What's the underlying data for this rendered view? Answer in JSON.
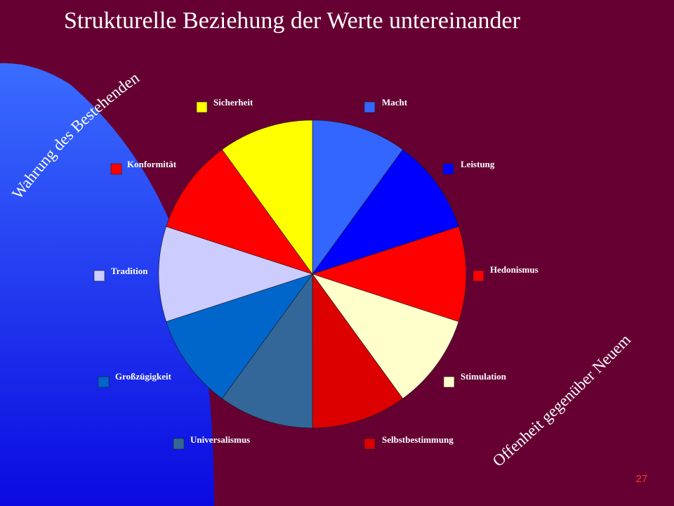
{
  "title": "Strukturelle Beziehung der Werte untereinander",
  "annotations": {
    "left_arc": "Wahrung des Bestehenden",
    "right_arc": "Offenheit gegenüber Neuem"
  },
  "page_number": "27",
  "colors": {
    "background": "#660033",
    "blue_shape_top": "#3366ff",
    "blue_shape_bottom": "#0000cc"
  },
  "chart_data": {
    "type": "pie",
    "title": "",
    "slices": [
      {
        "label": "Macht",
        "value": 1,
        "color": "#3366ff"
      },
      {
        "label": "Leistung",
        "value": 1,
        "color": "#0000ff"
      },
      {
        "label": "Hedonismus",
        "value": 1,
        "color": "#ff0000"
      },
      {
        "label": "Stimulation",
        "value": 1,
        "color": "#ffffcc"
      },
      {
        "label": "Selbstbestimmung",
        "value": 1,
        "color": "#dd0000"
      },
      {
        "label": "Universalismus",
        "value": 1,
        "color": "#336699"
      },
      {
        "label": "Großzügigkeit",
        "value": 1,
        "color": "#0066cc"
      },
      {
        "label": "Tradition",
        "value": 1,
        "color": "#ccccff"
      },
      {
        "label": "Konformität",
        "value": 1,
        "color": "#ff0000"
      },
      {
        "label": "Sicherheit",
        "value": 1,
        "color": "#ffff00"
      }
    ]
  }
}
